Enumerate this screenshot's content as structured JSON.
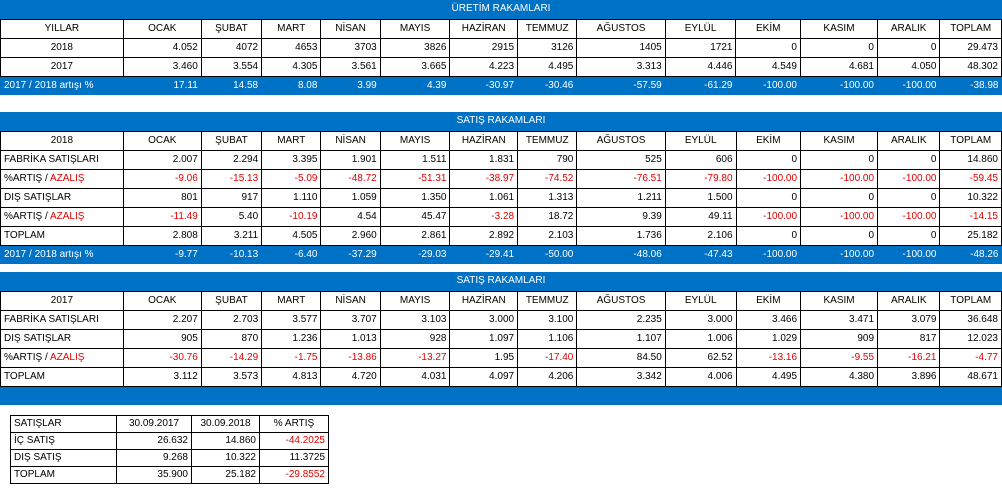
{
  "uretim": {
    "title": "ÜRETİM RAKAMLARI",
    "header": [
      "YILLAR",
      "OCAK",
      "ŞUBAT",
      "MART",
      "NİSAN",
      "MAYIS",
      "HAZİRAN",
      "TEMMUZ",
      "AĞUSTOS",
      "EYLÜL",
      "EKİM",
      "KASIM",
      "ARALIK",
      "TOPLAM"
    ],
    "rows": [
      [
        "2018",
        "4.052",
        "4072",
        "4653",
        "3703",
        "3826",
        "2915",
        "3126",
        "1405",
        "1721",
        "0",
        "0",
        "0",
        "29.473"
      ],
      [
        "2017",
        "3.460",
        "3.554",
        "4.305",
        "3.561",
        "3.665",
        "4.223",
        "4.495",
        "3.313",
        "4.446",
        "4.549",
        "4.681",
        "4.050",
        "48.302"
      ]
    ],
    "footer": [
      "2017 / 2018 artışı %",
      "17.11",
      "14.58",
      "8.08",
      "3.99",
      "4.39",
      "-30.97",
      "-30.46",
      "-57.59",
      "-61.29",
      "-100.00",
      "-100.00",
      "-100.00",
      "-38.98"
    ]
  },
  "satis2018": {
    "title": "SATIŞ RAKAMLARI",
    "header": [
      "2018",
      "OCAK",
      "ŞUBAT",
      "MART",
      "NİSAN",
      "MAYIS",
      "HAZİRAN",
      "TEMMUZ",
      "AĞUSTOS",
      "EYLÜL",
      "EKİM",
      "KASIM",
      "ARALIK",
      "TOPLAM"
    ],
    "rows": [
      {
        "label": "FABRİKA SATIŞLARI",
        "values": [
          "2.007",
          "2.294",
          "3.395",
          "1.901",
          "1.511",
          "1.831",
          "790",
          "525",
          "606",
          "0",
          "0",
          "0",
          "14.860"
        ]
      },
      {
        "label_a": "%ARTIŞ / ",
        "label_b": "AZALIŞ",
        "values": [
          "-9.06",
          "-15.13",
          "-5.09",
          "-48.72",
          "-51.31",
          "-38.97",
          "-74.52",
          "-76.51",
          "-79.80",
          "-100.00",
          "-100.00",
          "-100.00",
          "-59.45"
        ]
      },
      {
        "label": "DIŞ SATIŞLAR",
        "values": [
          "801",
          "917",
          "1.110",
          "1.059",
          "1.350",
          "1.061",
          "1.313",
          "1.211",
          "1.500",
          "0",
          "0",
          "0",
          "10.322"
        ]
      },
      {
        "label_a": "%ARTIŞ / ",
        "label_b": "AZALIŞ",
        "values": [
          "-11.49",
          "5.40",
          "-10.19",
          "4.54",
          "45.47",
          "-3.28",
          "18.72",
          "9.39",
          "49.11",
          "-100.00",
          "-100.00",
          "-100.00",
          "-14.15"
        ]
      },
      {
        "label": "TOPLAM",
        "values": [
          "2.808",
          "3.211",
          "4.505",
          "2.960",
          "2.861",
          "2.892",
          "2.103",
          "1.736",
          "2.106",
          "0",
          "0",
          "0",
          "25.182"
        ]
      }
    ],
    "footer": [
      "2017 / 2018 artışı %",
      "-9.77",
      "-10.13",
      "-6.40",
      "-37.29",
      "-29.03",
      "-29.41",
      "-50.00",
      "-48.06",
      "-47.43",
      "-100.00",
      "-100.00",
      "-100.00",
      "-48.26"
    ]
  },
  "satis2017": {
    "title": "SATIŞ RAKAMLARI",
    "header": [
      "2017",
      "OCAK",
      "ŞUBAT",
      "MART",
      "NİSAN",
      "MAYIS",
      "HAZİRAN",
      "TEMMUZ",
      "AĞUSTOS",
      "EYLÜL",
      "EKİM",
      "KASIM",
      "ARALIK",
      "TOPLAM"
    ],
    "rows": [
      {
        "label": "FABRİKA SATIŞLARI",
        "values": [
          "2.207",
          "2.703",
          "3.577",
          "3.707",
          "3.103",
          "3.000",
          "3.100",
          "2.235",
          "3.000",
          "3.466",
          "3.471",
          "3.079",
          "36.648"
        ]
      },
      {
        "label": "DIŞ SATIŞLAR",
        "values": [
          "905",
          "870",
          "1.236",
          "1.013",
          "928",
          "1.097",
          "1.106",
          "1.107",
          "1.006",
          "1.029",
          "909",
          "817",
          "12.023"
        ]
      },
      {
        "label_a": "%ARTIŞ / ",
        "label_b": "AZALIŞ",
        "values": [
          "-30.76",
          "-14.29",
          "-1.75",
          "-13.86",
          "-13.27",
          "1.95",
          "-17.40",
          "84.50",
          "62.52",
          "-13.16",
          "-9.55",
          "-16.21",
          "-4.77"
        ]
      },
      {
        "label": "TOPLAM",
        "values": [
          "3.112",
          "3.573",
          "4.813",
          "4.720",
          "4.031",
          "4.097",
          "4.206",
          "3.342",
          "4.006",
          "4.495",
          "4.380",
          "3.896",
          "48.671"
        ]
      }
    ]
  },
  "summary": {
    "header": [
      "SATIŞLAR",
      "30.09.2017",
      "30.09.2018",
      "% ARTIŞ"
    ],
    "rows": [
      [
        "İÇ SATIŞ",
        "26.632",
        "14.860",
        "-44.2025"
      ],
      [
        "DIŞ SATIŞ",
        "9.268",
        "10.322",
        "11.3725"
      ],
      [
        "TOPLAM",
        "35.900",
        "25.182",
        "-29.8552"
      ]
    ]
  },
  "colors": {
    "band": "#0072c6",
    "negative": "#e00000"
  }
}
